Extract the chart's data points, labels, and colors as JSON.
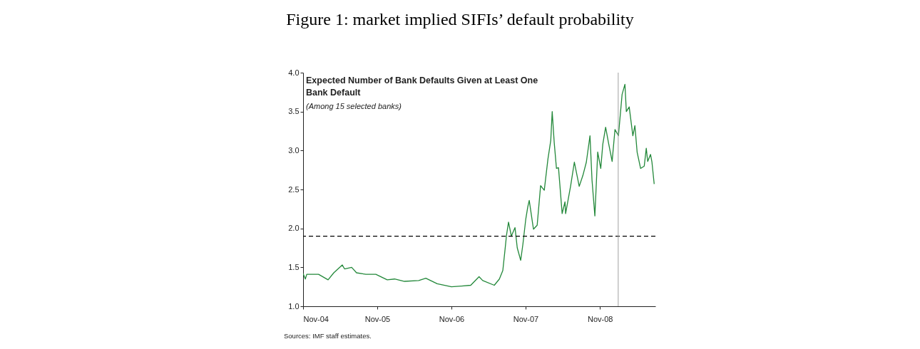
{
  "chart_data": {
    "type": "line",
    "title": "Figure 1: market implied SIFIs’ default probability",
    "subtitle": "Expected Number of Bank Defaults Given at Least One Bank Default",
    "annotations": [
      "(Among 15 selected banks)",
      "Sources: IMF staff estimates."
    ],
    "x": [
      "2004-11-01",
      "2004-11-12",
      "2004-11-19",
      "2005-01-16",
      "2005-03-04",
      "2005-04-01",
      "2005-05-13",
      "2005-05-24",
      "2005-06-28",
      "2005-07-22",
      "2005-09-06",
      "2005-10-25",
      "2005-12-20",
      "2006-01-25",
      "2006-03-15",
      "2006-05-24",
      "2006-06-28",
      "2006-08-23",
      "2006-11-01",
      "2006-12-21",
      "2007-02-04",
      "2007-03-17",
      "2007-04-04",
      "2007-05-31",
      "2007-06-25",
      "2007-07-12",
      "2007-07-23",
      "2007-07-30",
      "2007-08-09",
      "2007-08-23",
      "2007-09-10",
      "2007-09-21",
      "2007-10-08",
      "2007-10-19",
      "2007-11-02",
      "2007-11-12",
      "2007-11-19",
      "2007-12-07",
      "2007-12-10",
      "2007-12-28",
      "2008-01-14",
      "2008-02-01",
      "2008-02-19",
      "2008-03-04",
      "2008-03-11",
      "2008-03-21",
      "2008-04-01",
      "2008-04-11",
      "2008-04-29",
      "2008-05-13",
      "2008-05-16",
      "2008-06-10",
      "2008-06-28",
      "2008-07-22",
      "2008-08-09",
      "2008-08-26",
      "2008-09-13",
      "2008-09-23",
      "2008-10-07",
      "2008-10-18",
      "2008-10-21",
      "2008-11-05",
      "2008-11-15",
      "2008-11-29",
      "2008-12-13",
      "2008-12-31",
      "2009-01-14",
      "2009-01-31",
      "2009-02-18",
      "2009-03-04",
      "2009-03-11",
      "2009-03-25",
      "2009-04-12",
      "2009-04-22",
      "2009-05-03",
      "2009-05-20",
      "2009-06-07",
      "2009-06-17",
      "2009-06-24",
      "2009-07-08",
      "2009-07-15",
      "2009-07-26"
    ],
    "series": [
      {
        "color": "#23883a",
        "values": [
          1.42,
          1.35,
          1.41,
          1.41,
          1.34,
          1.43,
          1.53,
          1.48,
          1.5,
          1.43,
          1.41,
          1.41,
          1.34,
          1.35,
          1.32,
          1.33,
          1.36,
          1.29,
          1.25,
          1.26,
          1.27,
          1.38,
          1.33,
          1.27,
          1.35,
          1.46,
          1.73,
          1.91,
          2.08,
          1.9,
          2.01,
          1.75,
          1.59,
          1.8,
          2.12,
          2.28,
          2.36,
          2.04,
          1.99,
          2.04,
          2.55,
          2.49,
          2.89,
          3.13,
          3.5,
          3.1,
          2.77,
          2.78,
          2.19,
          2.34,
          2.19,
          2.55,
          2.85,
          2.54,
          2.68,
          2.85,
          3.19,
          2.62,
          2.16,
          2.8,
          2.98,
          2.77,
          3.08,
          3.3,
          3.1,
          2.86,
          3.27,
          3.19,
          3.72,
          3.85,
          3.5,
          3.56,
          3.19,
          3.32,
          2.98,
          2.77,
          2.8,
          3.03,
          2.86,
          2.95,
          2.85,
          2.57
        ]
      }
    ],
    "xlim": [
      "2004-11-01",
      "2009-08-01"
    ],
    "xticks": [
      {
        "value": "2004-11-01",
        "label": "Nov-04"
      },
      {
        "value": "2005-11-01",
        "label": "Nov-05"
      },
      {
        "value": "2006-11-01",
        "label": "Nov-06"
      },
      {
        "value": "2007-11-01",
        "label": "Nov-07"
      },
      {
        "value": "2008-11-01",
        "label": "Nov-08"
      }
    ],
    "ylim": [
      1,
      4
    ],
    "yticks": [
      {
        "value": 1,
        "label": "1.0"
      },
      {
        "value": 1.5,
        "label": "1.5"
      },
      {
        "value": 2,
        "label": "2.0"
      },
      {
        "value": 2.5,
        "label": "2.5"
      },
      {
        "value": 3,
        "label": "3.0"
      },
      {
        "value": 3.5,
        "label": "3.5"
      },
      {
        "value": 4,
        "label": "4.0"
      }
    ],
    "ref_lines": [
      {
        "axis": "y",
        "value": 1.9,
        "color": "#000000",
        "line_style": "dashed"
      },
      {
        "axis": "x",
        "value": "2009-01-30",
        "color": "#a0a0a0",
        "line_style": "solid"
      }
    ],
    "grid": false,
    "marker": "none",
    "line_style": "solid"
  }
}
